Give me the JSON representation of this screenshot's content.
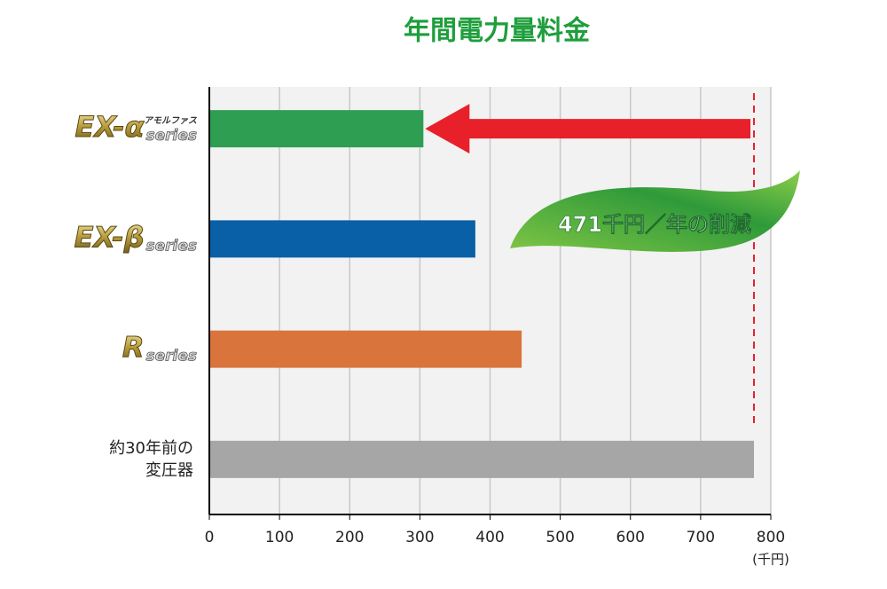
{
  "chart_data": {
    "type": "bar",
    "orientation": "horizontal",
    "title": "年間電力量料金",
    "categories": [
      {
        "logo": "EX-α",
        "tag": "アモルファス",
        "suffix": "series"
      },
      {
        "logo": "EX-β",
        "suffix": "series"
      },
      {
        "logo": "R",
        "suffix": "series"
      },
      {
        "lines": [
          "約30年前の",
          "変圧器"
        ]
      }
    ],
    "values": [
      305,
      379,
      445,
      776
    ],
    "colors": [
      "#2e9e52",
      "#0a60a6",
      "#d9743c",
      "#a6a6a6"
    ],
    "xlim": [
      0,
      800
    ],
    "xticks": [
      0,
      100,
      200,
      300,
      400,
      500,
      600,
      700,
      800
    ],
    "x_unit": "(千円)",
    "grid": true,
    "annotation": "471千円／年の削減",
    "reference_color": "#e8202a"
  }
}
